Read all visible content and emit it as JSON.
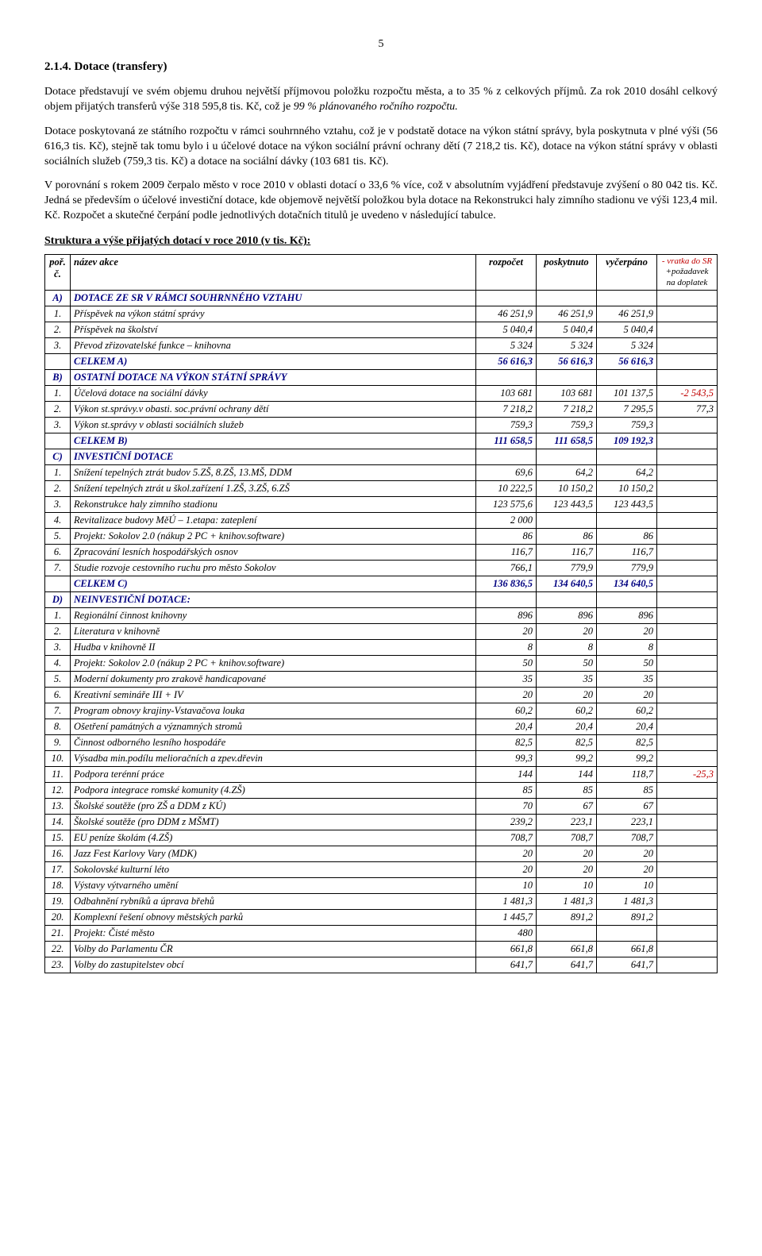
{
  "pageNumber": "5",
  "heading": "2.1.4.   Dotace (transfery)",
  "para1": "Dotace představují ve svém objemu druhou největší  příjmovou položku rozpočtu města, a to 35 % z celkových příjmů. Za rok 2010 dosáhl celkový objem přijatých transferů výše 318 595,8 tis. Kč,  což je ",
  "para1_italic": "99 % plánovaného ročního rozpočtu.",
  "para2": "Dotace poskytovaná ze státního rozpočtu v rámci souhrnného vztahu, což je v podstatě dotace na výkon státní správy, byla poskytnuta v plné výši (56 616,3 tis. Kč), stejně tak tomu bylo i  u účelové dotace na výkon sociální právní ochrany dětí (7 218,2 tis. Kč), dotace na výkon státní správy v oblasti sociálních služeb (759,3 tis. Kč) a  dotace na sociální dávky (103 681 tis. Kč).",
  "para3": "V porovnání s rokem 2009  čerpalo město v roce 2010 v oblasti dotací o 33,6 % více, což v absolutním vyjádření představuje zvýšení o 80 042 tis. Kč. Jedná se především o účelové investiční dotace, kde objemově největší položkou byla dotace na Rekonstrukci haly zimního stadionu ve výši 123,4 mil. Kč. Rozpočet a skutečné čerpání podle jednotlivých dotačních titulů je uvedeno v následující tabulce.",
  "tableTitle": "Struktura a výše přijatých dotací v roce  2010 (v tis. Kč):",
  "headers": {
    "c1": "poř. č.",
    "c2": "název akce",
    "c3": "rozpočet",
    "c4": "poskytnuto",
    "c5": "vyčerpáno",
    "c6a": "- vratka do SR",
    "c6b": "+požadavek na doplatek"
  },
  "rows": [
    {
      "idx": "A)",
      "name": "DOTACE ZE SR V RÁMCI SOUHRNNÉHO VZTAHU",
      "section": true
    },
    {
      "idx": "1.",
      "name": "Příspěvek na výkon státní správy",
      "r": "46 251,9",
      "p": "46 251,9",
      "v": "46 251,9"
    },
    {
      "idx": "2.",
      "name": "Příspěvek na školství",
      "r": "5 040,4",
      "p": "5 040,4",
      "v": "5 040,4"
    },
    {
      "idx": "3.",
      "name": "Převod zřizovatelské funkce – knihovna",
      "r": "5 324",
      "p": "5 324",
      "v": "5 324"
    },
    {
      "idx": "",
      "name": "CELKEM A)",
      "r": "56 616,3",
      "p": "56 616,3",
      "v": "56 616,3",
      "celkem": true
    },
    {
      "idx": "B)",
      "name": "OSTATNÍ DOTACE NA VÝKON STÁTNÍ SPRÁVY",
      "section": true
    },
    {
      "idx": "1.",
      "name": "Účelová dotace na sociální dávky",
      "r": "103 681",
      "p": "103 681",
      "v": "101 137,5",
      "d": "-2 543,5",
      "dneg": true
    },
    {
      "idx": "2.",
      "name": "Výkon st.správy.v obasti. soc.právní ochrany dětí",
      "r": "7 218,2",
      "p": "7 218,2",
      "v": "7 295,5",
      "d": "77,3"
    },
    {
      "idx": "3.",
      "name": "Výkon st.správy v oblasti sociálních služeb",
      "r": "759,3",
      "p": "759,3",
      "v": "759,3"
    },
    {
      "idx": "",
      "name": "CELKEM B)",
      "r": "111 658,5",
      "p": "111 658,5",
      "v": "109 192,3",
      "celkem": true
    },
    {
      "idx": "C)",
      "name": "INVESTIČNÍ DOTACE",
      "section": true
    },
    {
      "idx": "1.",
      "name": "Snížení tepelných ztrát budov 5.ZŠ, 8.ZŠ, 13.MŠ, DDM",
      "r": "69,6",
      "p": "64,2",
      "v": "64,2"
    },
    {
      "idx": "2.",
      "name": "Snížení tepelných ztrát u škol.zařízení 1.ZŠ, 3.ZŠ, 6.ZŠ",
      "r": "10 222,5",
      "p": "10 150,2",
      "v": "10 150,2"
    },
    {
      "idx": "3.",
      "name": "Rekonstrukce haly zimního stadionu",
      "r": "123 575,6",
      "p": "123 443,5",
      "v": "123 443,5"
    },
    {
      "idx": "4.",
      "name": "Revitalizace budovy MěÚ – 1.etapa: zateplení",
      "r": "2 000"
    },
    {
      "idx": "5.",
      "name": "Projekt: Sokolov 2.0 (nákup 2 PC + knihov.software)",
      "r": "86",
      "p": "86",
      "v": "86"
    },
    {
      "idx": "6.",
      "name": "Zpracování lesních hospodářských osnov",
      "r": "116,7",
      "p": "116,7",
      "v": "116,7"
    },
    {
      "idx": "7.",
      "name": "Studie rozvoje cestovního ruchu pro město Sokolov",
      "r": "766,1",
      "p": "779,9",
      "v": "779,9"
    },
    {
      "idx": "",
      "name": "CELKEM  C)",
      "r": "136 836,5",
      "p": "134 640,5",
      "v": "134 640,5",
      "celkem": true
    },
    {
      "idx": "D)",
      "name": "NEINVESTIČNÍ DOTACE:",
      "section": true
    },
    {
      "idx": "1.",
      "name": "Regionální činnost knihovny",
      "r": "896",
      "p": "896",
      "v": "896"
    },
    {
      "idx": "2.",
      "name": "Literatura v knihovně",
      "r": "20",
      "p": "20",
      "v": "20"
    },
    {
      "idx": "3.",
      "name": "Hudba v knihovně II",
      "r": "8",
      "p": "8",
      "v": "8"
    },
    {
      "idx": "4.",
      "name": "Projekt: Sokolov 2.0 (nákup 2 PC + knihov.software)",
      "r": "50",
      "p": "50",
      "v": "50"
    },
    {
      "idx": "5.",
      "name": "Moderní dokumenty pro zrakově handicapované",
      "r": "35",
      "p": "35",
      "v": "35"
    },
    {
      "idx": "6.",
      "name": "Kreativní semináře III + IV",
      "r": "20",
      "p": "20",
      "v": "20"
    },
    {
      "idx": "7.",
      "name": "Program obnovy krajiny-Vstavačova louka",
      "r": "60,2",
      "p": "60,2",
      "v": "60,2"
    },
    {
      "idx": "8.",
      "name": "Ošetření památných a významných stromů",
      "r": "20,4",
      "p": "20,4",
      "v": "20,4"
    },
    {
      "idx": "9.",
      "name": "Činnost odborného lesního hospodáře",
      "r": "82,5",
      "p": "82,5",
      "v": "82,5"
    },
    {
      "idx": "10.",
      "name": "Výsadba min.podílu melioračních a zpev.dřevin",
      "r": "99,3",
      "p": "99,2",
      "v": "99,2"
    },
    {
      "idx": "11.",
      "name": "Podpora terénní  práce",
      "r": "144",
      "p": "144",
      "v": "118,7",
      "d": "-25,3",
      "dneg": true
    },
    {
      "idx": "12.",
      "name": "Podpora integrace romské komunity (4.ZŠ)",
      "r": "85",
      "p": "85",
      "v": "85"
    },
    {
      "idx": "13.",
      "name": "Školské soutěže (pro ZŠ a DDM z KÚ)",
      "r": "70",
      "p": "67",
      "v": "67"
    },
    {
      "idx": "14.",
      "name": "Školské soutěže (pro DDM z MŠMT)",
      "r": "239,2",
      "p": "223,1",
      "v": "223,1"
    },
    {
      "idx": "15.",
      "name": "EU peníze školám (4.ZŠ)",
      "r": "708,7",
      "p": "708,7",
      "v": "708,7"
    },
    {
      "idx": "16.",
      "name": "Jazz Fest Karlovy Vary (MDK)",
      "r": "20",
      "p": "20",
      "v": "20"
    },
    {
      "idx": "17.",
      "name": "Sokolovské kulturní léto",
      "r": "20",
      "p": "20",
      "v": "20"
    },
    {
      "idx": "18.",
      "name": "Výstavy výtvarného umění",
      "r": "10",
      "p": "10",
      "v": "10"
    },
    {
      "idx": "19.",
      "name": "Odbahnění rybníků a úprava břehů",
      "r": "1 481,3",
      "p": "1 481,3",
      "v": "1 481,3"
    },
    {
      "idx": "20.",
      "name": "Komplexní řešení obnovy městských parků",
      "r": "1 445,7",
      "p": "891,2",
      "v": "891,2"
    },
    {
      "idx": "21.",
      "name": "Projekt: Čisté město",
      "r": "480"
    },
    {
      "idx": "22.",
      "name": "Volby do Parlamentu ČR",
      "r": "661,8",
      "p": "661,8",
      "v": "661,8"
    },
    {
      "idx": "23.",
      "name": "Volby do zastupitelstev obcí",
      "r": "641,7",
      "p": "641,7",
      "v": "641,7"
    }
  ]
}
